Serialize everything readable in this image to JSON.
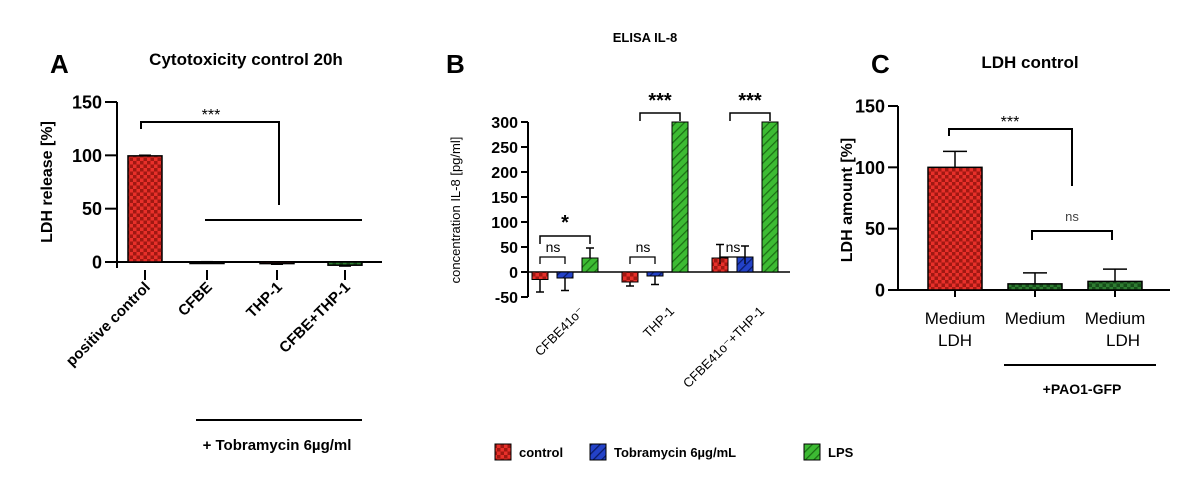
{
  "colors": {
    "red": "#e8302a",
    "blue": "#2342c8",
    "green": "#3dbb33",
    "darkgreen": "#2f7d32",
    "axis": "#000000"
  },
  "chart_data": [
    {
      "id": "A",
      "panel_label": "A",
      "type": "bar",
      "title": "Cytotoxicity control 20h",
      "ylabel": "LDH release [%]",
      "xlabel": "",
      "ylim": [
        -10,
        150
      ],
      "yticks": [
        0,
        50,
        100,
        150
      ],
      "categories": [
        "positive control",
        "CFBE",
        "THP-1",
        "CFBE+THP-1"
      ],
      "values": [
        99.5,
        0.0,
        -1.5,
        -3.0
      ],
      "errors": [
        0.6,
        0.3,
        0.6,
        0.8
      ],
      "bar_colors": [
        "red",
        "red",
        "red",
        "darkgreen"
      ],
      "significance": "***",
      "group_label": "+ Tobramycin 6µg/ml"
    },
    {
      "id": "B",
      "panel_label": "B",
      "type": "bar",
      "title": "ELISA IL-8",
      "ylabel": "concentration IL-8 [pg/ml]",
      "xlabel": "",
      "ylim": [
        -50,
        300
      ],
      "yticks": [
        -50,
        0,
        50,
        100,
        150,
        200,
        250,
        300
      ],
      "categories": [
        "CFBE41o⁻",
        "THP-1",
        "CFBE41o⁻+THP-1"
      ],
      "series": [
        {
          "name": "control",
          "color": "red",
          "values": [
            -15,
            -20,
            28
          ],
          "errors": [
            25,
            8,
            27
          ]
        },
        {
          "name": "Tobramycin 6µg/mL",
          "color": "blue",
          "values": [
            -12,
            -8,
            30
          ],
          "errors": [
            25,
            17,
            22
          ]
        },
        {
          "name": "LPS",
          "color": "green",
          "values": [
            28,
            300,
            300
          ],
          "errors": [
            20,
            0,
            0
          ]
        }
      ],
      "significance": [
        "*",
        "***",
        "***"
      ],
      "pair_significance": [
        "ns",
        "ns",
        "ns"
      ],
      "legend": [
        "control",
        "Tobramycin 6µg/mL",
        "LPS"
      ]
    },
    {
      "id": "C",
      "panel_label": "C",
      "type": "bar",
      "title": "LDH control",
      "ylabel": "LDH amount [%]",
      "xlabel": "",
      "ylim": [
        0,
        150
      ],
      "yticks": [
        0,
        50,
        100,
        150
      ],
      "categories": [
        "Medium LDH",
        "Medium",
        "Medium LDH"
      ],
      "category_lines": [
        [
          "Medium",
          "LDH"
        ],
        [
          "Medium"
        ],
        [
          "Medium",
          "LDH"
        ]
      ],
      "values": [
        100,
        5,
        7
      ],
      "errors": [
        13,
        9,
        10
      ],
      "bar_colors": [
        "red",
        "darkgreen",
        "darkgreen"
      ],
      "significance": "***",
      "pair_significance": "ns",
      "group_label": "+PAO1-GFP"
    }
  ]
}
